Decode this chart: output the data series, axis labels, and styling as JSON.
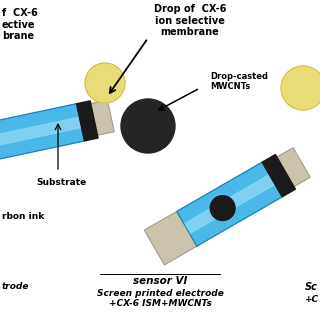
{
  "bg_color": "#ffffff",
  "blue_color": "#4ab8e8",
  "blue_light": "#90d8f5",
  "substrate_color": "#ccc4aa",
  "black_color": "#1a1a1a",
  "dark_circle_color": "#252525",
  "yellow_circle_color": "#e8dc78",
  "drop_text": "Drop of  CX-6\nion selective\nmembrane",
  "dropcasted_text": "Drop-casted\nMWCNTs",
  "left_top_text": "f  CX-6\nective\nbrane",
  "substrate_text": "Substrate",
  "carbon_ink_text": "rbon ink",
  "bottom_left_text": "trode",
  "sensor_label": "sensor VI",
  "sensor_sub": "Screen printed electrode\n+CX-6 ISM+MWCNTs",
  "right_bottom1": "Sc",
  "right_bottom2": "+C"
}
